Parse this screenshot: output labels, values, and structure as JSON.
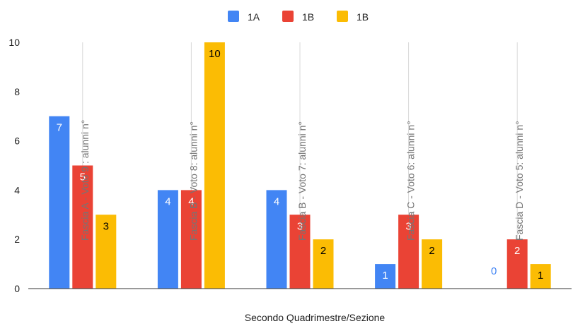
{
  "chart_data": {
    "type": "bar",
    "title": "",
    "xlabel": "Secondo Quadrimestre/Sezione",
    "ylabel": "",
    "ylim": [
      0,
      10
    ],
    "yticks": [
      0,
      2,
      4,
      6,
      8,
      10
    ],
    "grid": "vertical lines at category centers",
    "legend_position": "top-center",
    "categories": [
      "Fascia A - Voto 9 : alunni n°",
      "Fascia B - Voto 8: alunni n°",
      "Fascia B - Voto 7: alunni n°",
      "Fascia C - Voto 6: alunni n°",
      "Fascia D - Voto 5: alunni n°"
    ],
    "series": [
      {
        "name": "1A",
        "color": "#4285f4",
        "values": [
          7,
          4,
          4,
          1,
          0
        ]
      },
      {
        "name": "1B",
        "color": "#ea4335",
        "values": [
          5,
          4,
          3,
          3,
          2
        ]
      },
      {
        "name": "1B",
        "color": "#fbbc04",
        "values": [
          3,
          10,
          2,
          2,
          1
        ]
      }
    ]
  }
}
